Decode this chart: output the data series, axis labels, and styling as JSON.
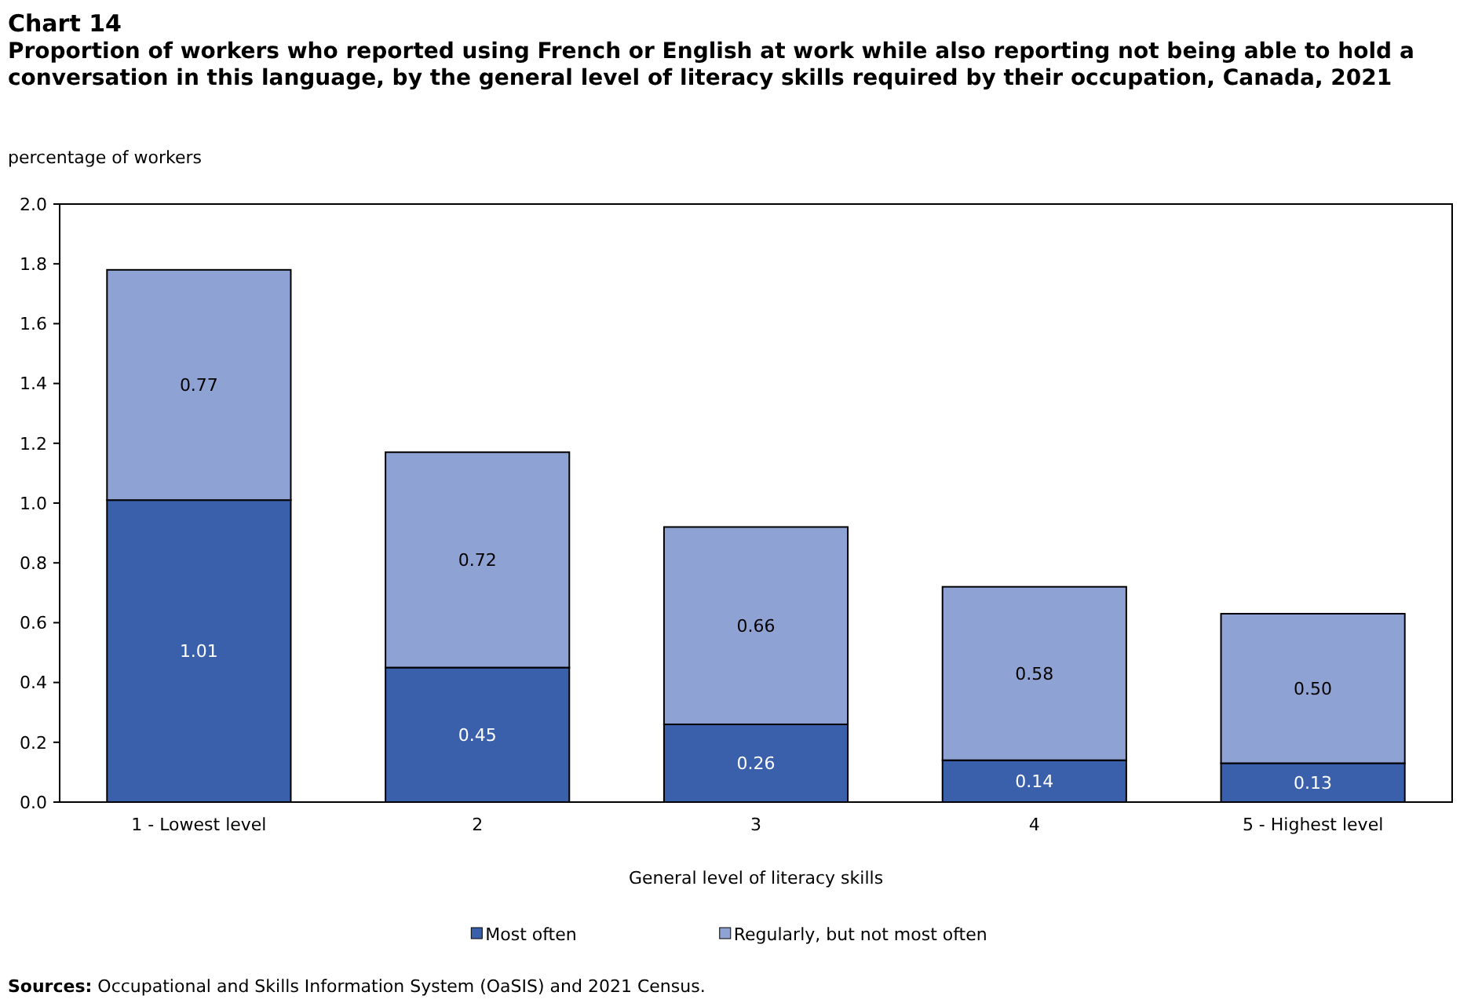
{
  "chart_data": {
    "type": "bar",
    "title": "Chart 14",
    "subtitle": "Proportion of workers who reported using French or English at work while also reporting not being able to hold a conversation in this language, by the general level of literacy skills required by their occupation, Canada, 2021",
    "ylabel": "percentage of workers",
    "xlabel": "General level of literacy skills",
    "categories": [
      "1 - Lowest level",
      "2",
      "3",
      "4",
      "5 - Highest level"
    ],
    "stacked": true,
    "series": [
      {
        "name": "Most often",
        "color": "#3a60ab",
        "values": [
          1.01,
          0.45,
          0.26,
          0.14,
          0.13
        ]
      },
      {
        "name": "Regularly, but not most often",
        "color": "#8fa2d4",
        "values": [
          0.77,
          0.72,
          0.66,
          0.58,
          0.5
        ],
        "value_labels": [
          "0.77",
          "0.72",
          "0.66",
          "0.58",
          "0.50"
        ]
      }
    ],
    "ylim": [
      0,
      2
    ],
    "yticks": [
      {
        "value": 0,
        "label": "0.0"
      },
      {
        "value": 0.2,
        "label": "0.2"
      },
      {
        "value": 0.4,
        "label": "0.4"
      },
      {
        "value": 0.6,
        "label": "0.6"
      },
      {
        "value": 0.8,
        "label": "0.8"
      },
      {
        "value": 1,
        "label": "1.0"
      },
      {
        "value": 1.2,
        "label": "1.2"
      },
      {
        "value": 1.4,
        "label": "1.4"
      },
      {
        "value": 1.6,
        "label": "1.6"
      },
      {
        "value": 1.8,
        "label": "1.8"
      },
      {
        "value": 2,
        "label": "2.0"
      }
    ],
    "data_labels": true,
    "legend": "bottom",
    "annotations": [
      "Sources: Occupational and Skills Information System (OaSIS) and 2021 Census."
    ]
  }
}
